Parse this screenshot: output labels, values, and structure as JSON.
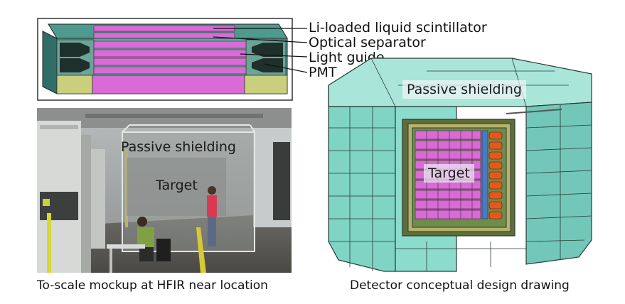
{
  "segment_diagram": {
    "callouts": [
      "Li-loaded liquid scintillator",
      "Optical separator",
      "Light guide",
      "PMT"
    ]
  },
  "photo": {
    "labels": [
      "Passive shielding",
      "Target"
    ],
    "caption": "To-scale mockup at HFIR near location"
  },
  "detector": {
    "labels": [
      "Passive shielding",
      "Target"
    ],
    "caption": "Detector conceptual design drawing"
  },
  "colors": {
    "scintillator": "#d96ad6",
    "shielding": "#7fd4c4",
    "light_guide": "#c9cf7d",
    "pmt": "#e05a1e",
    "frame": "#3a3a3a"
  }
}
